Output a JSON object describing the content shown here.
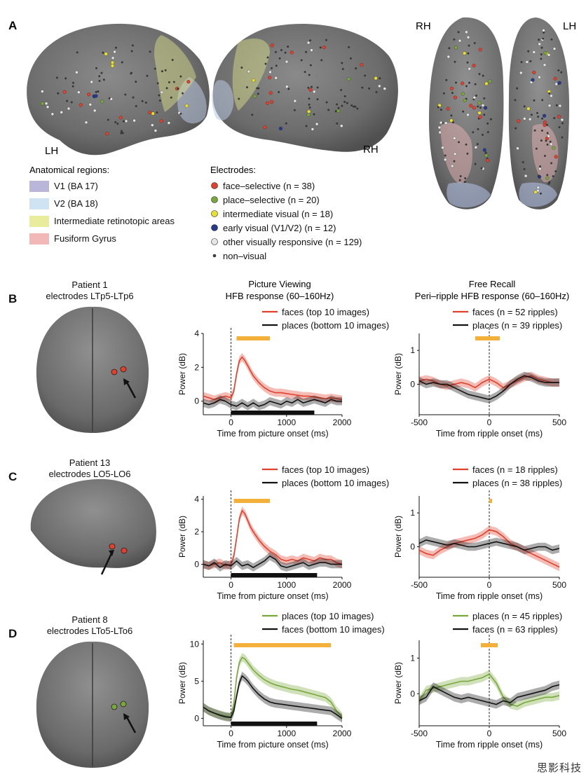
{
  "panel_letters": [
    "A",
    "B",
    "C",
    "D"
  ],
  "hemispheres": {
    "left": "LH",
    "right": "RH",
    "ventral_right": "RH",
    "ventral_left": "LH"
  },
  "regions": {
    "title": "Anatomical regions:",
    "items": [
      {
        "label": "V1 (BA 17)",
        "color": "#b9b6da"
      },
      {
        "label": "V2 (BA 18)",
        "color": "#cfe3f2"
      },
      {
        "label": "Intermediate retinotopic areas",
        "color": "#e9ec9c"
      },
      {
        "label": "Fusiform Gyrus",
        "color": "#f2b7b7"
      }
    ]
  },
  "electrodes": {
    "title": "Electrodes:",
    "items": [
      {
        "label": "face–selective (n = 38)",
        "color": "#e0402c"
      },
      {
        "label": "place–selective (n = 20)",
        "color": "#78a83a"
      },
      {
        "label": "intermediate visual (n = 18)",
        "color": "#e8e030"
      },
      {
        "label": "early visual (V1/V2) (n = 12)",
        "color": "#243a8c"
      },
      {
        "label": "other visually responsive (n = 129)",
        "color": "#e6e6e6"
      },
      {
        "label": "non–visual",
        "color": "#444444",
        "small": true
      }
    ]
  },
  "col_titles": {
    "picture": [
      "Picture Viewing",
      "HFB response (60–160Hz)"
    ],
    "recall": [
      "Free Recall",
      "Peri–ripple HFB response (60–160Hz)"
    ]
  },
  "rows": [
    {
      "letter": "B",
      "patient": [
        "Patient 1",
        "electrodes LTp5-LTp6"
      ],
      "view": "top",
      "picture_legend": [
        {
          "label": "faces (top 10 images)",
          "color": "#e0402c"
        },
        {
          "label": "places (bottom 10 images)",
          "color": "#111111"
        }
      ],
      "recall_legend": [
        {
          "label": "faces (n = 52 ripples)",
          "color": "#e0402c"
        },
        {
          "label": "places (n = 39 ripples)",
          "color": "#111111"
        }
      ]
    },
    {
      "letter": "C",
      "patient": [
        "Patient 13",
        "electrodes LO5-LO6"
      ],
      "view": "side",
      "picture_legend": [
        {
          "label": "faces (top 10 images)",
          "color": "#e0402c"
        },
        {
          "label": "places (bottom 10 images)",
          "color": "#111111"
        }
      ],
      "recall_legend": [
        {
          "label": "faces (n = 18 ripples)",
          "color": "#e0402c"
        },
        {
          "label": "places (n = 38 ripples)",
          "color": "#111111"
        }
      ]
    },
    {
      "letter": "D",
      "patient": [
        "Patient 8",
        "electrodes LTo5-LTo6"
      ],
      "view": "top",
      "picture_legend": [
        {
          "label": "places (top 10 images)",
          "color": "#78a83a"
        },
        {
          "label": "faces (bottom 10 images)",
          "color": "#111111"
        }
      ],
      "recall_legend": [
        {
          "label": "places (n = 45 ripples)",
          "color": "#78a83a"
        },
        {
          "label": "faces (n = 63 ripples)",
          "color": "#111111"
        }
      ]
    }
  ],
  "watermark": "思影科技",
  "chart_data": [
    {
      "type": "line",
      "panel": "B",
      "xlabel": "Time from picture onset (ms)",
      "ylabel": "Power (dB)",
      "xlim": [
        -500,
        2000
      ],
      "ylim": [
        -0.8,
        4
      ],
      "xticks": [
        0,
        1000,
        2000
      ],
      "yticks": [
        0,
        2,
        4
      ],
      "onset_line": 0,
      "significance": [
        100,
        700
      ],
      "stimulus": [
        0,
        1500
      ],
      "series": [
        {
          "name": "faces (top 10 images)",
          "color": "#e0402c",
          "x": [
            -500,
            -400,
            -300,
            -200,
            -100,
            0,
            50,
            100,
            150,
            200,
            250,
            300,
            350,
            400,
            500,
            600,
            700,
            800,
            900,
            1000,
            1100,
            1200,
            1300,
            1400,
            1500,
            1600,
            1700,
            1800,
            1900,
            2000
          ],
          "values": [
            0.3,
            0.2,
            0.1,
            0.2,
            0.3,
            0.2,
            0.6,
            1.6,
            2.4,
            2.6,
            2.4,
            2.1,
            1.8,
            1.5,
            1.1,
            0.8,
            0.6,
            0.5,
            0.5,
            0.45,
            0.4,
            0.35,
            0.3,
            0.3,
            0.25,
            0.2,
            0.15,
            0.2,
            0.15,
            0.1
          ]
        },
        {
          "name": "places (bottom 10 images)",
          "color": "#111111",
          "x": [
            -500,
            -400,
            -300,
            -200,
            -100,
            0,
            100,
            200,
            300,
            400,
            500,
            600,
            700,
            800,
            900,
            1000,
            1100,
            1200,
            1300,
            1400,
            1500,
            1600,
            1700,
            1800,
            1900,
            2000
          ],
          "values": [
            -0.1,
            -0.2,
            -0.1,
            0.1,
            0.0,
            -0.2,
            -0.3,
            -0.1,
            -0.3,
            -0.1,
            -0.3,
            -0.2,
            0.0,
            -0.1,
            -0.2,
            0.0,
            -0.1,
            0.1,
            -0.1,
            0.0,
            0.1,
            0.0,
            -0.1,
            0.1,
            0.0,
            0.0
          ]
        }
      ]
    },
    {
      "type": "line",
      "panel": "B",
      "xlabel": "Time from ripple onset (ms)",
      "ylabel": "Power (dB)",
      "xlim": [
        -500,
        500
      ],
      "ylim": [
        -0.9,
        1.5
      ],
      "xticks": [
        -500,
        0,
        500
      ],
      "yticks": [
        0,
        1
      ],
      "onset_line": 0,
      "significance": [
        -100,
        75
      ],
      "series": [
        {
          "name": "faces (n = 52 ripples)",
          "color": "#e0402c",
          "x": [
            -500,
            -450,
            -400,
            -350,
            -300,
            -250,
            -200,
            -150,
            -100,
            -50,
            0,
            50,
            100,
            150,
            200,
            250,
            300,
            350,
            400,
            450,
            500
          ],
          "values": [
            0.1,
            0.15,
            0.1,
            0.0,
            -0.05,
            0.0,
            0.05,
            0.0,
            -0.1,
            0.05,
            0.15,
            0.05,
            -0.1,
            0.0,
            0.1,
            0.2,
            0.25,
            0.15,
            0.1,
            0.05,
            0.05
          ]
        },
        {
          "name": "places (n = 39 ripples)",
          "color": "#111111",
          "x": [
            -500,
            -450,
            -400,
            -350,
            -300,
            -250,
            -200,
            -150,
            -100,
            -50,
            0,
            50,
            100,
            150,
            200,
            250,
            300,
            350,
            400,
            450,
            500
          ],
          "values": [
            0.1,
            0.0,
            0.05,
            0.0,
            0.0,
            -0.1,
            -0.2,
            -0.3,
            -0.35,
            -0.4,
            -0.45,
            -0.35,
            -0.2,
            0.0,
            0.15,
            0.25,
            0.2,
            0.1,
            0.05,
            0.05,
            0.05
          ]
        }
      ]
    },
    {
      "type": "line",
      "panel": "C",
      "xlabel": "Time from picture onset (ms)",
      "ylabel": "Power (dB)",
      "xlim": [
        -500,
        2000
      ],
      "ylim": [
        -0.8,
        4.2
      ],
      "xticks": [
        0,
        1000,
        2000
      ],
      "yticks": [
        0,
        2,
        4
      ],
      "onset_line": 0,
      "significance": [
        50,
        700
      ],
      "stimulus": [
        0,
        1550
      ],
      "series": [
        {
          "name": "faces (top 10 images)",
          "color": "#e0402c",
          "x": [
            -500,
            -400,
            -300,
            -200,
            -100,
            0,
            50,
            100,
            150,
            200,
            250,
            300,
            350,
            400,
            500,
            600,
            700,
            800,
            900,
            1000,
            1100,
            1200,
            1300,
            1400,
            1500,
            1600,
            1700,
            1800,
            1900,
            2000
          ],
          "values": [
            0.0,
            -0.1,
            0.0,
            0.1,
            -0.1,
            0.0,
            0.5,
            1.6,
            2.8,
            3.3,
            3.1,
            2.7,
            2.3,
            2.0,
            1.5,
            1.1,
            0.8,
            0.6,
            0.3,
            0.2,
            0.3,
            0.2,
            0.4,
            0.3,
            0.2,
            0.4,
            0.3,
            0.3,
            0.1,
            0.0
          ]
        },
        {
          "name": "places (bottom 10 images)",
          "color": "#111111",
          "x": [
            -500,
            -400,
            -300,
            -200,
            -100,
            0,
            100,
            200,
            300,
            400,
            500,
            600,
            700,
            800,
            900,
            1000,
            1100,
            1200,
            1300,
            1400,
            1500,
            1600,
            1700,
            1800,
            1900,
            2000
          ],
          "values": [
            0.0,
            -0.1,
            0.1,
            -0.2,
            0.0,
            -0.1,
            0.2,
            -0.1,
            0.0,
            -0.2,
            0.0,
            0.2,
            0.5,
            0.3,
            -0.1,
            -0.2,
            -0.1,
            0.0,
            0.1,
            -0.1,
            0.0,
            0.1,
            0.1,
            0.0,
            0.0,
            0.0
          ]
        }
      ]
    },
    {
      "type": "line",
      "panel": "C",
      "xlabel": "Time from ripple onset (ms)",
      "ylabel": "Power (dB)",
      "xlim": [
        -500,
        500
      ],
      "ylim": [
        -0.9,
        1.5
      ],
      "xticks": [
        -500,
        0,
        500
      ],
      "yticks": [
        0,
        1
      ],
      "onset_line": 0,
      "significance": [
        0,
        20
      ],
      "series": [
        {
          "name": "faces (n = 18 ripples)",
          "color": "#e0402c",
          "x": [
            -500,
            -450,
            -400,
            -350,
            -300,
            -250,
            -200,
            -150,
            -100,
            -50,
            0,
            50,
            100,
            150,
            200,
            250,
            300,
            350,
            400,
            450,
            500
          ],
          "values": [
            -0.1,
            -0.2,
            -0.25,
            -0.1,
            0.0,
            0.1,
            0.15,
            0.2,
            0.25,
            0.35,
            0.5,
            0.45,
            0.3,
            0.1,
            0.0,
            -0.1,
            -0.2,
            -0.3,
            -0.4,
            -0.5,
            -0.6
          ]
        },
        {
          "name": "places (n = 38 ripples)",
          "color": "#111111",
          "x": [
            -500,
            -450,
            -400,
            -350,
            -300,
            -250,
            -200,
            -150,
            -100,
            -50,
            0,
            50,
            100,
            150,
            200,
            250,
            300,
            350,
            400,
            450,
            500
          ],
          "values": [
            0.1,
            0.2,
            0.15,
            0.1,
            0.05,
            0.1,
            0.05,
            0.0,
            0.0,
            0.05,
            0.1,
            0.15,
            0.1,
            0.05,
            0.0,
            -0.1,
            -0.05,
            0.0,
            0.0,
            -0.1,
            -0.05
          ]
        }
      ]
    },
    {
      "type": "line",
      "panel": "D",
      "xlabel": "Time from picture onset (ms)",
      "ylabel": "Power (dB)",
      "xlim": [
        -500,
        2000
      ],
      "ylim": [
        -1,
        10.5
      ],
      "xticks": [
        0,
        1000,
        2000
      ],
      "yticks": [
        0,
        5,
        10
      ],
      "onset_line": 0,
      "significance": [
        50,
        1800
      ],
      "stimulus": [
        0,
        1550
      ],
      "series": [
        {
          "name": "places (top 10 images)",
          "color": "#78a83a",
          "x": [
            -500,
            -400,
            -300,
            -200,
            -100,
            0,
            50,
            100,
            150,
            200,
            250,
            300,
            350,
            400,
            500,
            600,
            700,
            800,
            900,
            1000,
            1100,
            1200,
            1300,
            1400,
            1500,
            1600,
            1700,
            1800,
            1900,
            2000
          ],
          "values": [
            1.5,
            1.0,
            0.7,
            0.5,
            0.3,
            0.2,
            2.0,
            5.5,
            7.5,
            8.2,
            8.0,
            7.5,
            7.0,
            6.5,
            5.8,
            5.2,
            4.8,
            4.5,
            4.3,
            4.1,
            3.9,
            3.8,
            3.6,
            3.4,
            3.2,
            3.0,
            2.8,
            2.2,
            1.0,
            0.2
          ]
        },
        {
          "name": "faces (bottom 10 images)",
          "color": "#111111",
          "x": [
            -500,
            -400,
            -300,
            -200,
            -100,
            0,
            50,
            100,
            150,
            200,
            250,
            300,
            350,
            400,
            500,
            600,
            700,
            800,
            900,
            1000,
            1100,
            1200,
            1300,
            1400,
            1500,
            1600,
            1700,
            1800,
            1900,
            2000
          ],
          "values": [
            1.5,
            1.0,
            0.7,
            0.4,
            0.2,
            0.1,
            1.0,
            3.0,
            4.8,
            5.7,
            5.4,
            5.0,
            4.5,
            4.0,
            3.2,
            2.6,
            2.2,
            2.0,
            1.9,
            1.8,
            1.7,
            1.6,
            1.5,
            1.4,
            1.3,
            1.2,
            1.1,
            1.0,
            0.5,
            0.0
          ]
        }
      ]
    },
    {
      "type": "line",
      "panel": "D",
      "xlabel": "Time from ripple onset (ms)",
      "ylabel": "Power (dB)",
      "xlim": [
        -500,
        500
      ],
      "ylim": [
        -0.9,
        1.5
      ],
      "xticks": [
        -500,
        0,
        500
      ],
      "yticks": [
        0,
        1
      ],
      "onset_line": 0,
      "significance": [
        -60,
        60
      ],
      "series": [
        {
          "name": "places (n = 45 ripples)",
          "color": "#78a83a",
          "x": [
            -500,
            -450,
            -400,
            -350,
            -300,
            -250,
            -200,
            -150,
            -100,
            -50,
            0,
            50,
            100,
            150,
            200,
            250,
            300,
            350,
            400,
            450,
            500
          ],
          "values": [
            -0.2,
            0.1,
            0.15,
            0.2,
            0.25,
            0.3,
            0.35,
            0.35,
            0.4,
            0.45,
            0.55,
            0.3,
            -0.1,
            -0.3,
            -0.35,
            -0.25,
            -0.2,
            -0.15,
            -0.1,
            -0.1,
            -0.05
          ]
        },
        {
          "name": "faces (n = 63 ripples)",
          "color": "#111111",
          "x": [
            -500,
            -450,
            -400,
            -350,
            -300,
            -250,
            -200,
            -150,
            -100,
            -50,
            0,
            50,
            100,
            150,
            200,
            250,
            300,
            350,
            400,
            450,
            500
          ],
          "values": [
            -0.2,
            -0.1,
            0.2,
            0.1,
            0.0,
            -0.1,
            -0.15,
            -0.1,
            -0.15,
            -0.2,
            -0.25,
            -0.3,
            -0.2,
            -0.25,
            -0.1,
            -0.05,
            0.0,
            0.05,
            0.1,
            0.2,
            0.25
          ]
        }
      ]
    }
  ]
}
